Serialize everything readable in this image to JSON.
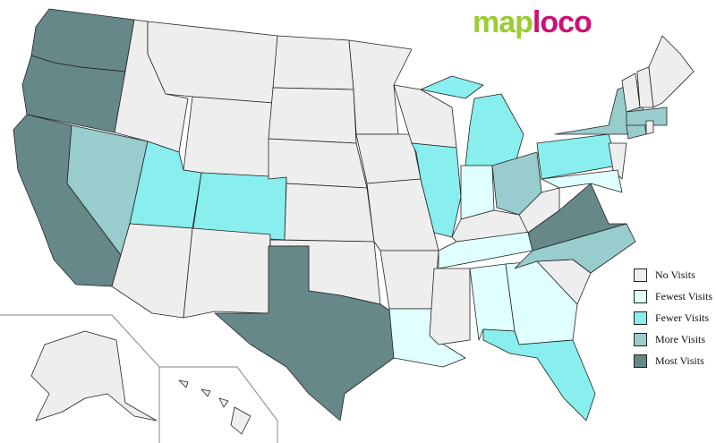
{
  "logo": {
    "part1": "map",
    "part2": "loco"
  },
  "legend": [
    {
      "key": "none",
      "label": "No Visits",
      "color": "#eeeeee"
    },
    {
      "key": "fewest",
      "label": "Fewest Visits",
      "color": "#e0ffff"
    },
    {
      "key": "fewer",
      "label": "Fewer Visits",
      "color": "#88eeee"
    },
    {
      "key": "more",
      "label": "More Visits",
      "color": "#99cccc"
    },
    {
      "key": "most",
      "label": "Most Visits",
      "color": "#668888"
    }
  ],
  "states": {
    "WA": "most",
    "OR": "most",
    "CA": "most",
    "TX": "most",
    "VA": "most",
    "NV": "more",
    "NC": "more",
    "NY": "more",
    "OH": "more",
    "MA": "more",
    "CT": "more",
    "UT": "fewer",
    "CO": "fewer",
    "IL": "fewer",
    "MI": "fewer",
    "PA": "fewer",
    "FL": "fewer",
    "IN": "fewest",
    "TN": "fewest",
    "AL": "fewest",
    "GA": "fewest",
    "LA": "fewest",
    "MD": "fewest",
    "ID": "none",
    "MT": "none",
    "WY": "none",
    "AZ": "none",
    "NM": "none",
    "ND": "none",
    "SD": "none",
    "NE": "none",
    "KS": "none",
    "OK": "none",
    "MN": "none",
    "IA": "none",
    "MO": "none",
    "AR": "none",
    "WI": "none",
    "KY": "none",
    "MS": "none",
    "SC": "none",
    "WV": "none",
    "NJ": "none",
    "RI": "none",
    "VT": "none",
    "NH": "none",
    "ME": "none",
    "AK": "none",
    "HI": "none"
  }
}
